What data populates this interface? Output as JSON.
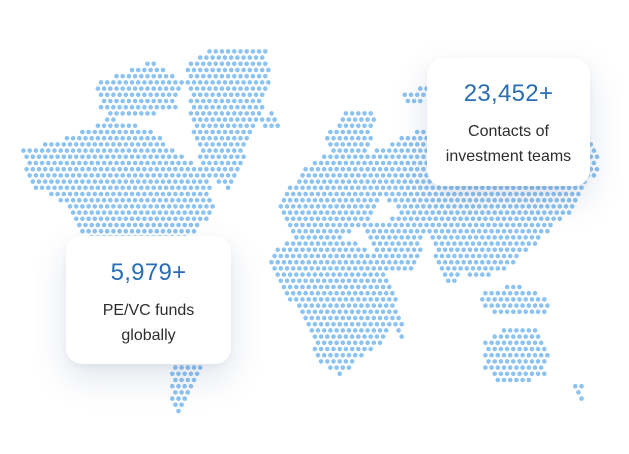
{
  "colors": {
    "accent": "#2a6db5",
    "dot": "#8cc3f0"
  },
  "map": {
    "icon": "world-dot-map"
  },
  "stats": {
    "contacts": {
      "value": "23,452+",
      "line1": "Contacts of",
      "line2": "investment teams"
    },
    "funds": {
      "value": "5,979+",
      "line1": "PE/VC funds",
      "line2": "globally"
    }
  }
}
